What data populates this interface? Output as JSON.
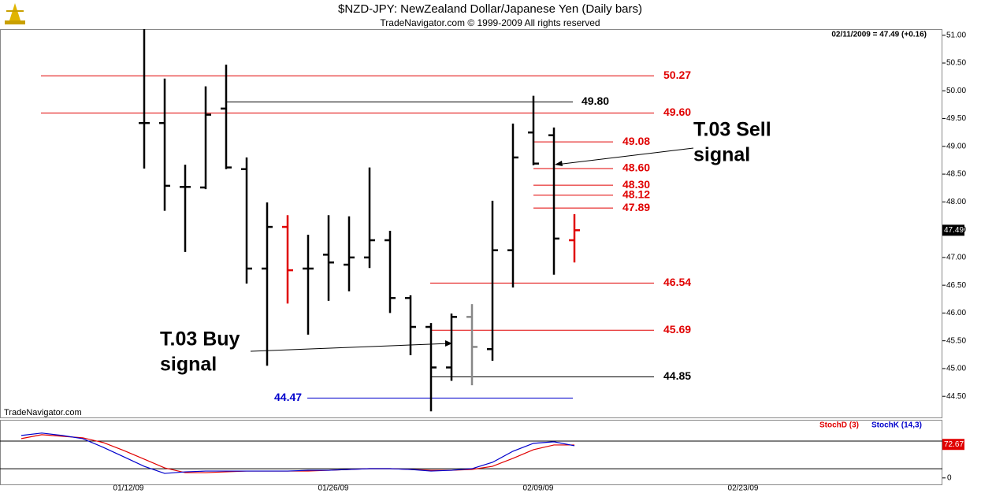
{
  "chart_data": {
    "type": "ohlc",
    "title": "$NZD-JPY:  NewZealand Dollar/Japanese Yen  (Daily bars)",
    "subtitle": "TradeNavigator.com © 1999-2009 All rights reserved",
    "status": "02/11/2009 = 47.49 (+0.16)",
    "watermark": "TradeNavigator.com",
    "last_price": 47.49,
    "categories": [
      null,
      null,
      null,
      null,
      null,
      "01/12/09",
      null,
      null,
      null,
      null,
      null,
      null,
      null,
      null,
      null,
      "01/26/09",
      null,
      null,
      null,
      null,
      null,
      null,
      null,
      null,
      null,
      "02/09/09",
      null,
      null,
      null,
      null,
      null,
      null,
      null,
      null,
      null,
      "02/23/09",
      null,
      null,
      null,
      null,
      null,
      null,
      null,
      null,
      null
    ],
    "open": [
      null,
      null,
      null,
      null,
      null,
      null,
      49.42,
      49.42,
      48.27,
      48.26,
      49.68,
      48.59,
      46.8,
      47.55,
      46.8,
      47.05,
      46.87,
      47.0,
      47.31,
      46.27,
      45.75,
      45.02,
      45.93,
      45.35,
      47.13,
      49.25,
      49.2,
      47.31,
      null,
      null,
      null,
      null,
      null,
      null,
      null,
      null,
      null,
      null,
      null,
      null,
      null,
      null,
      null,
      null,
      null
    ],
    "high": [
      null,
      null,
      null,
      null,
      null,
      null,
      51.11,
      50.22,
      48.67,
      50.08,
      50.47,
      48.8,
      47.99,
      47.76,
      47.41,
      47.76,
      47.74,
      48.62,
      47.48,
      46.32,
      45.82,
      45.99,
      46.16,
      48.02,
      49.41,
      49.91,
      49.34,
      47.78,
      null,
      null,
      null,
      null,
      null,
      null,
      null,
      null,
      null,
      null,
      null,
      null,
      null,
      null,
      null,
      null,
      null
    ],
    "low": [
      null,
      null,
      null,
      null,
      null,
      null,
      48.6,
      47.84,
      47.1,
      48.23,
      48.59,
      46.53,
      45.05,
      46.17,
      45.61,
      46.22,
      46.39,
      46.81,
      46.0,
      45.24,
      44.23,
      44.78,
      44.7,
      45.14,
      46.46,
      48.66,
      46.69,
      46.91,
      null,
      null,
      null,
      null,
      null,
      null,
      null,
      null,
      null,
      null,
      null,
      null,
      null,
      null,
      null,
      null,
      null
    ],
    "close": [
      null,
      null,
      null,
      null,
      null,
      null,
      49.42,
      48.29,
      48.27,
      49.57,
      48.62,
      46.8,
      47.55,
      46.77,
      46.8,
      46.91,
      47.0,
      47.31,
      46.27,
      45.75,
      45.02,
      45.93,
      45.39,
      47.13,
      48.8,
      48.69,
      47.34,
      47.49,
      null,
      null,
      null,
      null,
      null,
      null,
      null,
      null,
      null,
      null,
      null,
      null,
      null,
      null,
      null,
      null,
      null
    ],
    "bar_colors": [
      null,
      null,
      null,
      null,
      null,
      null,
      "#000000",
      "#000000",
      "#000000",
      "#000000",
      "#000000",
      "#000000",
      "#000000",
      "#e00000",
      "#000000",
      "#000000",
      "#000000",
      "#000000",
      "#000000",
      "#000000",
      "#000000",
      "#000000",
      "#888888",
      "#000000",
      "#000000",
      "#000000",
      "#000000",
      "#e00000",
      null,
      null,
      null,
      null,
      null,
      null,
      null,
      null,
      null,
      null,
      null,
      null,
      null,
      null,
      null,
      null,
      null
    ],
    "ylim": [
      44.12,
      51.11
    ],
    "yticks": [
      {
        "value": 44.5,
        "label": "44.50"
      },
      {
        "value": 45,
        "label": "45.00"
      },
      {
        "value": 45.5,
        "label": "45.50"
      },
      {
        "value": 46,
        "label": "46.00"
      },
      {
        "value": 46.5,
        "label": "46.50"
      },
      {
        "value": 47,
        "label": "47.00"
      },
      {
        "value": 47.5,
        "label": "47.50"
      },
      {
        "value": 48,
        "label": "48.00"
      },
      {
        "value": 48.5,
        "label": "48.50"
      },
      {
        "value": 49,
        "label": "49.00"
      },
      {
        "value": 49.5,
        "label": "49.50"
      },
      {
        "value": 50,
        "label": "50.00"
      },
      {
        "value": 50.5,
        "label": "50.50"
      },
      {
        "value": 51,
        "label": "51.00"
      }
    ],
    "levels": [
      {
        "value": 50.27,
        "label": "50.27",
        "color": "#e00000"
      },
      {
        "value": 49.8,
        "label": "49.80",
        "color": "#000000"
      },
      {
        "value": 49.6,
        "label": "49.60",
        "color": "#e00000"
      },
      {
        "value": 49.08,
        "label": "49.08",
        "color": "#e00000"
      },
      {
        "value": 48.6,
        "label": "48.60",
        "color": "#e00000"
      },
      {
        "value": 48.3,
        "label": "48.30",
        "color": "#e00000"
      },
      {
        "value": 48.12,
        "label": "48.12",
        "color": "#e00000"
      },
      {
        "value": 47.89,
        "label": "47.89",
        "color": "#e00000"
      },
      {
        "value": 46.54,
        "label": "46.54",
        "color": "#e00000"
      },
      {
        "value": 45.69,
        "label": "45.69",
        "color": "#e00000"
      },
      {
        "value": 44.85,
        "label": "44.85",
        "color": "#000000"
      },
      {
        "value": 44.47,
        "label": "44.47",
        "color": "#0000cc"
      }
    ],
    "annotations": [
      {
        "lines": [
          "T.03 Sell",
          "signal"
        ]
      },
      {
        "lines": [
          "T.03 Buy",
          "signal"
        ]
      }
    ],
    "stoch": {
      "ylim": [
        -14,
        126
      ],
      "yticks": [
        0
      ],
      "levels": [
        20,
        80
      ],
      "last": 72.67,
      "series": [
        {
          "name": "StochD (3)",
          "color": "#e00000",
          "values": [
            85.2,
            93.8,
            90.4,
            87.0,
            76.7,
            59.5,
            40.7,
            21.8,
            11.5,
            11.5,
            13.2,
            14.9,
            14.9,
            14.9,
            14.9,
            16.6,
            18.4,
            20.1,
            20.1,
            18.4,
            16.6,
            16.6,
            18.4,
            25.2,
            42.4,
            61.2,
            71.5,
            71.5,
            null,
            null,
            null,
            null,
            null,
            null,
            null,
            null,
            null,
            null,
            null,
            null,
            null,
            null,
            null,
            null,
            null
          ]
        },
        {
          "name": "StochK (14,3)",
          "color": "#0000cc",
          "values": [
            92.1,
            97.3,
            92.1,
            85.2,
            66.4,
            45.8,
            25.2,
            9.8,
            13.2,
            14.9,
            14.9,
            14.9,
            14.9,
            14.9,
            16.6,
            16.6,
            18.4,
            20.1,
            20.1,
            18.4,
            14.9,
            16.6,
            20.1,
            33.8,
            57.9,
            75.0,
            78.4,
            69.8,
            null,
            null,
            null,
            null,
            null,
            null,
            null,
            null,
            null,
            null,
            null,
            null,
            null,
            null,
            null,
            null,
            null
          ]
        }
      ]
    }
  }
}
